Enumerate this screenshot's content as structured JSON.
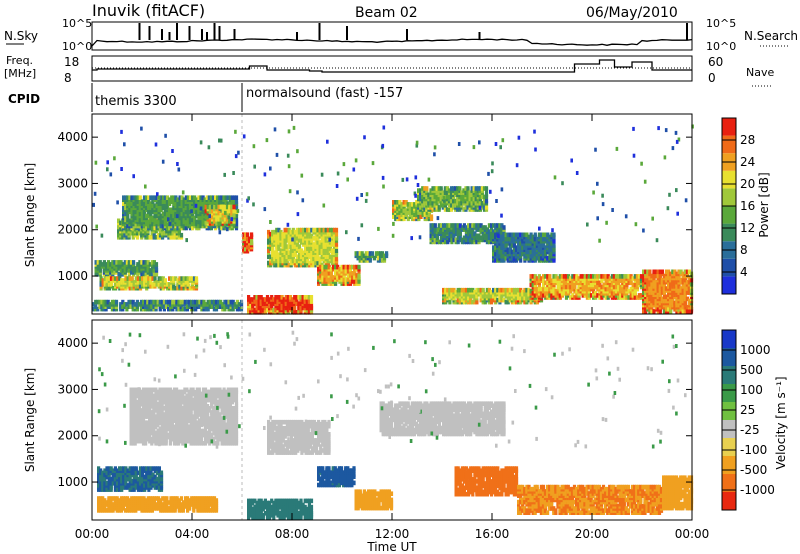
{
  "header": {
    "station": "Inuvik (fitACF)",
    "beam": "Beam 02",
    "date": "06/May/2010"
  },
  "summary": {
    "nsky_label": "N.Sky",
    "nsearch_label": "N.Search",
    "freq_label": "Freq.",
    "freq_unit": "[MHz]",
    "nave_label": "Nave",
    "cpid_label": "CPID",
    "nsky_ticks": [
      "10^5",
      "10^0"
    ],
    "freq_ticks": [
      "18",
      "8"
    ],
    "nave_ticks": [
      "60",
      "0"
    ]
  },
  "cpid": [
    {
      "name": "themis 3300",
      "start": 0,
      "end": 6
    },
    {
      "name": "normalsound (fast) -157",
      "start": 6,
      "end": 24
    }
  ],
  "power_panel": {
    "ylabel": "Slant Range [km]",
    "colorbar_label": "Power [dB]",
    "colorbar_ticks": [
      "28",
      "24",
      "20",
      "16",
      "12",
      "8",
      "4"
    ],
    "colors": [
      "#1e2fdc",
      "#1f4fa8",
      "#2a6e9a",
      "#3a8a5a",
      "#5aa83a",
      "#a0c83a",
      "#e8e030",
      "#f0a020",
      "#f06a18",
      "#e82010"
    ]
  },
  "velocity_panel": {
    "ylabel": "Slant Range [km]",
    "colorbar_label": "Velocity [m s⁻¹]",
    "colorbar_ticks": [
      "1000",
      "500",
      "100",
      "25",
      "-25",
      "-100",
      "-500",
      "-1000"
    ],
    "colors": [
      "#1838c8",
      "#1c58a0",
      "#2a7a78",
      "#3a9a48",
      "#70c040",
      "#c0c0c0",
      "#e8d050",
      "#f0a020",
      "#f07018",
      "#e82810"
    ]
  },
  "axes": {
    "xlabel": "Time UT",
    "xticks": [
      "00:00",
      "04:00",
      "08:00",
      "12:00",
      "16:00",
      "20:00",
      "00:00"
    ],
    "yticks": [
      "1000",
      "2000",
      "3000",
      "4000"
    ]
  },
  "chart_data": [
    {
      "type": "heatmap",
      "name": "power",
      "x_range_hours": [
        0,
        24
      ],
      "ylim_km": [
        180,
        4500
      ],
      "scale_db": [
        0,
        30
      ],
      "blobs": [
        {
          "x": [
            0.1,
            2.6
          ],
          "y": [
            1000,
            1300
          ],
          "v": 12
        },
        {
          "x": [
            0.3,
            4.2
          ],
          "y": [
            700,
            950
          ],
          "v": 18
        },
        {
          "x": [
            1.0,
            3.6
          ],
          "y": [
            1800,
            2200
          ],
          "v": 14
        },
        {
          "x": [
            1.2,
            5.8
          ],
          "y": [
            2000,
            2700
          ],
          "v": 12
        },
        {
          "x": [
            4.5,
            5.7
          ],
          "y": [
            2100,
            2500
          ],
          "v": 20
        },
        {
          "x": [
            6.0,
            6.4
          ],
          "y": [
            1500,
            1900
          ],
          "v": 26
        },
        {
          "x": [
            6.2,
            8.8
          ],
          "y": [
            180,
            550
          ],
          "v": 28
        },
        {
          "x": [
            7.0,
            9.8
          ],
          "y": [
            1200,
            2000
          ],
          "v": 18
        },
        {
          "x": [
            9.0,
            10.7
          ],
          "y": [
            800,
            1200
          ],
          "v": 22
        },
        {
          "x": [
            10.5,
            11.8
          ],
          "y": [
            1300,
            1500
          ],
          "v": 12
        },
        {
          "x": [
            12.0,
            13.6
          ],
          "y": [
            2200,
            2600
          ],
          "v": 16
        },
        {
          "x": [
            13.0,
            15.8
          ],
          "y": [
            2400,
            2900
          ],
          "v": 14
        },
        {
          "x": [
            13.5,
            16.5
          ],
          "y": [
            1700,
            2100
          ],
          "v": 10
        },
        {
          "x": [
            16.0,
            18.5
          ],
          "y": [
            1300,
            1900
          ],
          "v": 8
        },
        {
          "x": [
            14.0,
            18.0
          ],
          "y": [
            400,
            700
          ],
          "v": 18
        },
        {
          "x": [
            17.5,
            22.0
          ],
          "y": [
            500,
            1000
          ],
          "v": 22
        },
        {
          "x": [
            22.0,
            24.0
          ],
          "y": [
            200,
            1100
          ],
          "v": 24
        },
        {
          "x": [
            0.0,
            6.0
          ],
          "y": [
            250,
            450
          ],
          "v": 10
        }
      ]
    },
    {
      "type": "heatmap",
      "name": "velocity",
      "x_range_hours": [
        0,
        24
      ],
      "ylim_km": [
        180,
        4500
      ],
      "scale_ms": [
        -1000,
        1000
      ],
      "blobs": [
        {
          "x": [
            0.2,
            2.8
          ],
          "y": [
            800,
            1300
          ],
          "v": 300
        },
        {
          "x": [
            0.2,
            5.0
          ],
          "y": [
            350,
            650
          ],
          "v": -200
        },
        {
          "x": [
            1.5,
            5.8
          ],
          "y": [
            1800,
            3000
          ],
          "v": 0
        },
        {
          "x": [
            6.2,
            8.8
          ],
          "y": [
            200,
            600
          ],
          "v": 150
        },
        {
          "x": [
            7.0,
            9.5
          ],
          "y": [
            1600,
            2300
          ],
          "v": 0
        },
        {
          "x": [
            9.0,
            10.5
          ],
          "y": [
            900,
            1300
          ],
          "v": 400
        },
        {
          "x": [
            10.5,
            12.0
          ],
          "y": [
            400,
            800
          ],
          "v": -200
        },
        {
          "x": [
            11.5,
            16.5
          ],
          "y": [
            2000,
            2700
          ],
          "v": 0
        },
        {
          "x": [
            14.5,
            17.0
          ],
          "y": [
            700,
            1300
          ],
          "v": -500
        },
        {
          "x": [
            17.0,
            22.8
          ],
          "y": [
            300,
            900
          ],
          "v": -300
        },
        {
          "x": [
            22.8,
            24.0
          ],
          "y": [
            400,
            1100
          ],
          "v": -200
        }
      ]
    }
  ]
}
